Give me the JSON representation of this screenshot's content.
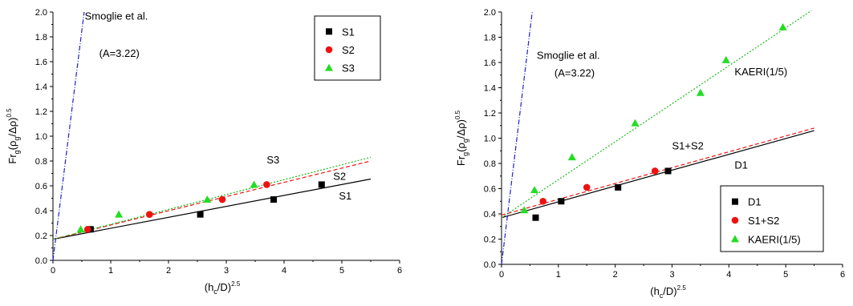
{
  "chart_data": [
    {
      "type": "scatter",
      "xlabel": {
        "base": "(h",
        "sub": "c",
        "mid": "/D)",
        "sup": "2.5"
      },
      "ylabel": {
        "p1": "Fr",
        "s1": "g",
        "p2": "(ρ",
        "s2": "g",
        "p3": "/Δρ)",
        "sup": "0.5"
      },
      "xlim": [
        0,
        6
      ],
      "ylim": [
        0,
        2.0
      ],
      "x_ticks": [
        "0",
        "1",
        "2",
        "3",
        "4",
        "5",
        "6"
      ],
      "y_ticks": [
        "0.0",
        "0.2",
        "0.4",
        "0.6",
        "0.8",
        "1.0",
        "1.2",
        "1.4",
        "1.6",
        "1.8",
        "2.0"
      ],
      "series": [
        {
          "name": "S1",
          "marker": "square",
          "color": "#000000",
          "points": [
            [
              0.65,
              0.25
            ],
            [
              2.55,
              0.37
            ],
            [
              3.82,
              0.49
            ],
            [
              4.65,
              0.61
            ]
          ]
        },
        {
          "name": "S2",
          "marker": "circle",
          "color": "#ee1111",
          "points": [
            [
              0.6,
              0.25
            ],
            [
              1.67,
              0.37
            ],
            [
              2.93,
              0.49
            ],
            [
              3.7,
              0.61
            ]
          ]
        },
        {
          "name": "S3",
          "marker": "triangle",
          "color": "#22dd22",
          "points": [
            [
              0.48,
              0.25
            ],
            [
              1.14,
              0.37
            ],
            [
              2.67,
              0.49
            ],
            [
              3.48,
              0.61
            ]
          ]
        }
      ],
      "fit_lines": [
        {
          "label": "S1",
          "x": [
            0,
            5.5
          ],
          "y": [
            0.17,
            0.655
          ],
          "color": "#000000",
          "dash": "solid"
        },
        {
          "label": "S2",
          "x": [
            0,
            5.5
          ],
          "y": [
            0.17,
            0.8
          ],
          "color": "#ee1111",
          "dash": "dashed"
        },
        {
          "label": "S3",
          "x": [
            0,
            5.5
          ],
          "y": [
            0.17,
            0.83
          ],
          "color": "#22bb22",
          "dash": "dotted"
        },
        {
          "label": "Smoglie et al.",
          "x": [
            0,
            0.54
          ],
          "y": [
            0,
            2.0
          ],
          "color": "#2222cc",
          "dash": "dashdot"
        }
      ],
      "annotations": [
        {
          "text": "Smoglie et al.",
          "x": 0.55,
          "y": 1.94
        },
        {
          "text": "(A=3.22)",
          "x": 0.8,
          "y": 1.64
        },
        {
          "text": "S3",
          "x": 3.7,
          "y": 0.78
        },
        {
          "text": "S2",
          "x": 4.85,
          "y": 0.65
        },
        {
          "text": "S1",
          "x": 4.95,
          "y": 0.49
        }
      ],
      "legend": "top-right",
      "grid": false
    },
    {
      "type": "scatter",
      "xlabel": {
        "base": "(h",
        "sub": "c",
        "mid": "/D)",
        "sup": "2.5"
      },
      "ylabel": {
        "p1": "Fr",
        "s1": "g",
        "p2": "(ρ",
        "s2": "g",
        "p3": "/Δρ)",
        "sup": "0.5"
      },
      "xlim": [
        0,
        6
      ],
      "ylim": [
        0,
        2.0
      ],
      "x_ticks": [
        "0",
        "1",
        "2",
        "3",
        "4",
        "5",
        "6"
      ],
      "y_ticks": [
        "0.0",
        "0.2",
        "0.4",
        "0.6",
        "0.8",
        "1.0",
        "1.2",
        "1.4",
        "1.6",
        "1.8",
        "2.0"
      ],
      "series": [
        {
          "name": "D1",
          "marker": "square",
          "color": "#000000",
          "points": [
            [
              0.6,
              0.37
            ],
            [
              1.05,
              0.5
            ],
            [
              2.05,
              0.61
            ],
            [
              2.93,
              0.74
            ]
          ]
        },
        {
          "name": "S1+S2",
          "marker": "circle",
          "color": "#ee1111",
          "points": [
            [
              0.73,
              0.5
            ],
            [
              1.5,
              0.61
            ],
            [
              2.7,
              0.74
            ]
          ]
        },
        {
          "name": "KAERI(1/5)",
          "marker": "triangle",
          "color": "#22dd22",
          "points": [
            [
              0.4,
              0.43
            ],
            [
              0.58,
              0.59
            ],
            [
              1.24,
              0.85
            ],
            [
              2.35,
              1.12
            ],
            [
              3.5,
              1.36
            ],
            [
              3.95,
              1.62
            ],
            [
              4.95,
              1.88
            ]
          ]
        }
      ],
      "fit_lines": [
        {
          "label": "D1",
          "x": [
            0,
            5.5
          ],
          "y": [
            0.37,
            1.06
          ],
          "color": "#000000",
          "dash": "solid"
        },
        {
          "label": "S1+S2",
          "x": [
            0,
            5.5
          ],
          "y": [
            0.39,
            1.08
          ],
          "color": "#ee1111",
          "dash": "dashed"
        },
        {
          "label": "KAERI(1/5)",
          "x": [
            0,
            5.45
          ],
          "y": [
            0.37,
            2.01
          ],
          "color": "#22bb22",
          "dash": "dotted"
        },
        {
          "label": "Smoglie et al.",
          "x": [
            0,
            0.54
          ],
          "y": [
            0,
            2.0
          ],
          "color": "#2222cc",
          "dash": "dashdot"
        }
      ],
      "annotations": [
        {
          "text": "Smoglie et al.",
          "x": 0.62,
          "y": 1.63
        },
        {
          "text": "(A=3.22)",
          "x": 0.93,
          "y": 1.49
        },
        {
          "text": "KAERI(1/5)",
          "x": 4.1,
          "y": 1.5
        },
        {
          "text": "S1+S2",
          "x": 3.0,
          "y": 0.91
        },
        {
          "text": "D1",
          "x": 4.1,
          "y": 0.76
        }
      ],
      "legend": "bottom-right",
      "grid": false
    }
  ]
}
